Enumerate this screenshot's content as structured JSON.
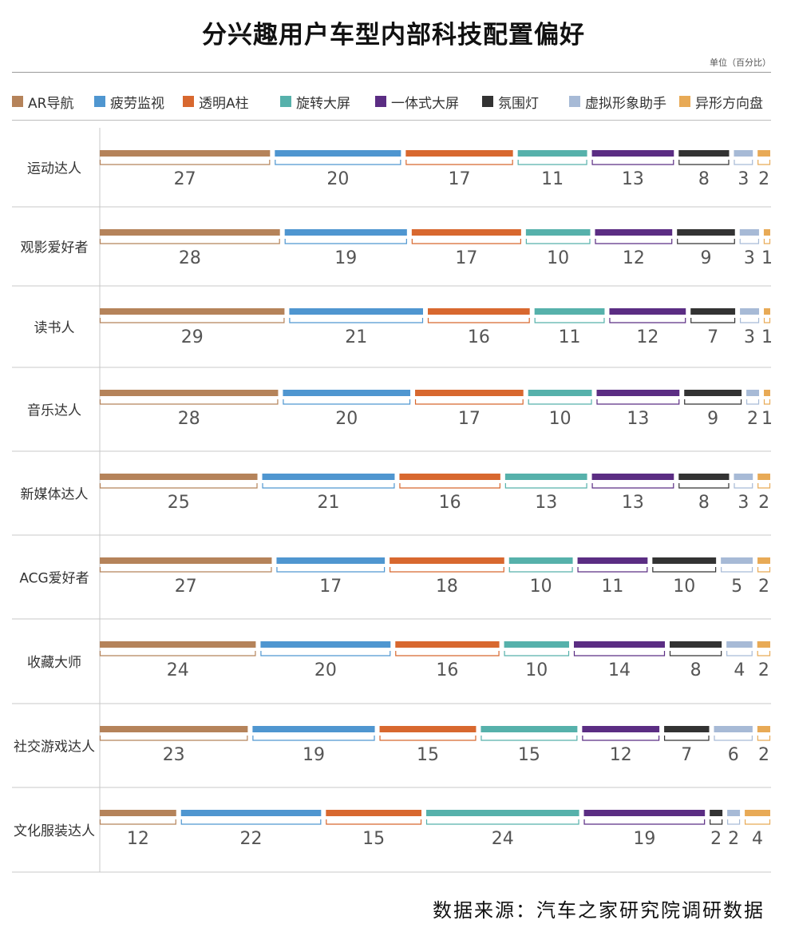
{
  "title": "分兴趣用户车型内部科技配置偏好",
  "unit_note": "单位（百分比）",
  "source_note": "数据来源：汽车之家研究院调研数据",
  "colors": {
    "series": [
      "#b5835a",
      "#4f96d0",
      "#d8682f",
      "#56b1ab",
      "#5b2d83",
      "#333333",
      "#a7bad6",
      "#e8aa56"
    ],
    "grid": "#c8c8c8",
    "value_text": "#555555",
    "category_text": "#333333"
  },
  "chart_data": {
    "type": "bar",
    "orientation": "horizontal-stacked",
    "title": "分兴趣用户车型内部科技配置偏好",
    "unit": "单位（百分比）",
    "legend_position": "top",
    "categories": [
      "运动达人",
      "观影爱好者",
      "读书人",
      "音乐达人",
      "新媒体达人",
      "ACG爱好者",
      "收藏大师",
      "社交游戏达人",
      "文化服装达人"
    ],
    "series": [
      {
        "name": "AR导航",
        "values": [
          27,
          28,
          29,
          28,
          25,
          27,
          24,
          23,
          12
        ]
      },
      {
        "name": "疲劳监视",
        "values": [
          20,
          19,
          21,
          20,
          21,
          17,
          20,
          19,
          22
        ]
      },
      {
        "name": "透明A柱",
        "values": [
          17,
          17,
          16,
          17,
          16,
          18,
          16,
          15,
          15
        ]
      },
      {
        "name": "旋转大屏",
        "values": [
          11,
          10,
          11,
          10,
          13,
          10,
          10,
          15,
          24
        ]
      },
      {
        "name": "一体式大屏",
        "values": [
          13,
          12,
          12,
          13,
          13,
          11,
          14,
          12,
          19
        ]
      },
      {
        "name": "氛围灯",
        "values": [
          8,
          9,
          7,
          9,
          8,
          10,
          8,
          7,
          2
        ]
      },
      {
        "name": "虚拟形象助手",
        "values": [
          3,
          3,
          3,
          2,
          3,
          5,
          4,
          6,
          2
        ]
      },
      {
        "name": "异形方向盘",
        "values": [
          2,
          1,
          1,
          1,
          2,
          2,
          2,
          2,
          4
        ]
      }
    ]
  }
}
